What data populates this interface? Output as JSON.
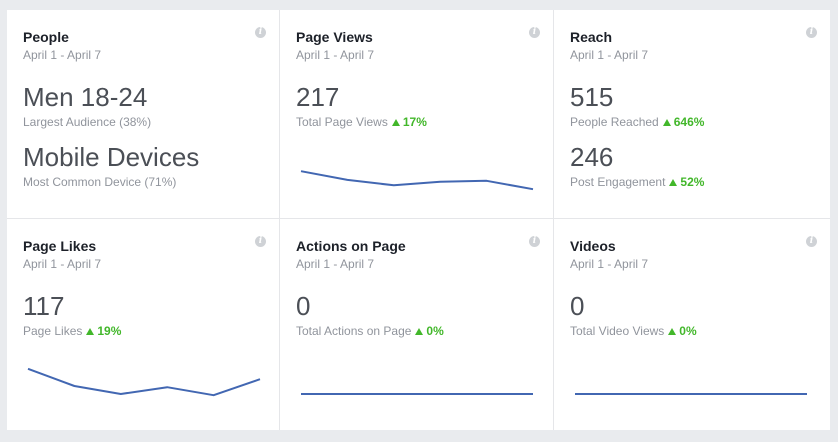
{
  "cards": {
    "people": {
      "title": "People",
      "date": "April 1 - April 7",
      "primary_value": "Men 18-24",
      "primary_label": "Largest Audience (38%)",
      "secondary_value": "Mobile Devices",
      "secondary_label": "Most Common Device (71%)",
      "info_icon": "i"
    },
    "page_views": {
      "title": "Page Views",
      "date": "April 1 - April 7",
      "value": "217",
      "label": "Total Page Views",
      "change": "17%",
      "info_icon": "i",
      "trend": [
        0.68,
        0.41,
        0.24,
        0.35,
        0.38,
        0.12
      ]
    },
    "reach": {
      "title": "Reach",
      "date": "April 1 - April 7",
      "value": "515",
      "label": "People Reached",
      "change": "646%",
      "secondary_value": "246",
      "secondary_label": "Post Engagement",
      "secondary_change": "52%",
      "info_icon": "i"
    },
    "page_likes": {
      "title": "Page Likes",
      "date": "April 1 - April 7",
      "value": "117",
      "label": "Page Likes",
      "change": "19%",
      "info_icon": "i",
      "trend": [
        0.78,
        0.35,
        0.15,
        0.32,
        0.12,
        0.52
      ]
    },
    "actions": {
      "title": "Actions on Page",
      "date": "April 1 - April 7",
      "value": "0",
      "label": "Total Actions on Page",
      "change": "0%",
      "info_icon": "i",
      "trend": [
        0,
        0,
        0,
        0,
        0,
        0
      ]
    },
    "videos": {
      "title": "Videos",
      "date": "April 1 - April 7",
      "value": "0",
      "label": "Total Video Views",
      "change": "0%",
      "info_icon": "i",
      "trend": [
        0,
        0,
        0,
        0,
        0,
        0
      ]
    }
  },
  "colors": {
    "trend_line": "#4267b2",
    "positive_change": "#42b72a"
  }
}
